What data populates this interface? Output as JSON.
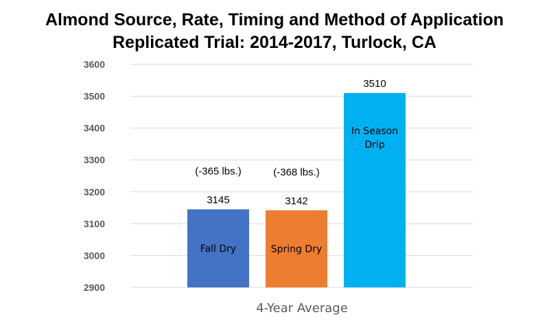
{
  "chart_data": {
    "type": "bar",
    "title": "Almond Source, Rate, Timing and Method of Application",
    "subtitle": "Replicated Trial: 2014-2017, Turlock, CA",
    "xlabel": "",
    "ylabel": "",
    "category": "4-Year Average",
    "ylim": [
      2900,
      3600
    ],
    "yticks": [
      "2900",
      "3000",
      "3100",
      "3200",
      "3300",
      "3400",
      "3500",
      "3600"
    ],
    "grid": true,
    "series": [
      {
        "name": "Fall Dry",
        "value": 3145,
        "value_label": "3145",
        "inner_label": [
          "Fall Dry"
        ],
        "annotation": "(-365 lbs.)",
        "color": "#4472C4"
      },
      {
        "name": "Spring Dry",
        "value": 3142,
        "value_label": "3142",
        "inner_label": [
          "Spring Dry"
        ],
        "annotation": "(-368 lbs.)",
        "color": "#ED7D31"
      },
      {
        "name": "In Season Drip",
        "value": 3510,
        "value_label": "3510",
        "inner_label": [
          "In Season",
          "Drip"
        ],
        "annotation": "",
        "color": "#00B0F0"
      }
    ],
    "gridline_color": "#D9D9D9"
  }
}
